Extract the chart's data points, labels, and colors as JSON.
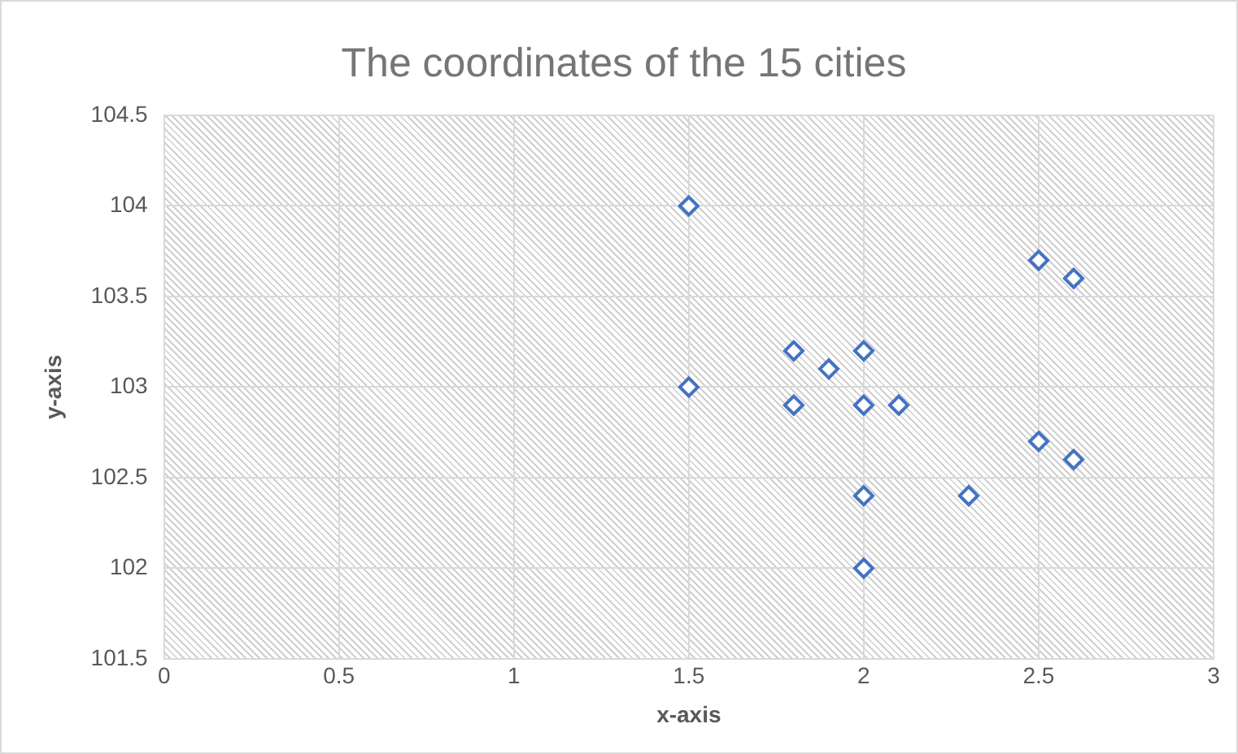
{
  "chart_data": {
    "type": "scatter",
    "title": "The coordinates of the 15 cities",
    "xlabel": "x-axis",
    "ylabel": "y-axis",
    "x": [
      1.5,
      1.5,
      1.8,
      1.8,
      1.9,
      2,
      2,
      2.1,
      2,
      2,
      2.3,
      2.5,
      2.6,
      2.5,
      2.6
    ],
    "values": [
      104,
      103,
      103.2,
      102.9,
      103.1,
      103.2,
      102.9,
      102.9,
      102.4,
      102,
      102.4,
      103.7,
      103.6,
      102.7,
      102.6
    ],
    "color": "#4472c4",
    "marker": "diamond",
    "grid": true,
    "legend": false,
    "xlim": [
      0,
      3
    ],
    "xticks": [
      0,
      0.5,
      1,
      1.5,
      2,
      2.5,
      3
    ],
    "ylim": [
      101.5,
      104.5
    ],
    "yticks": [
      101.5,
      102,
      102.5,
      103,
      103.5,
      104,
      104.5
    ]
  }
}
